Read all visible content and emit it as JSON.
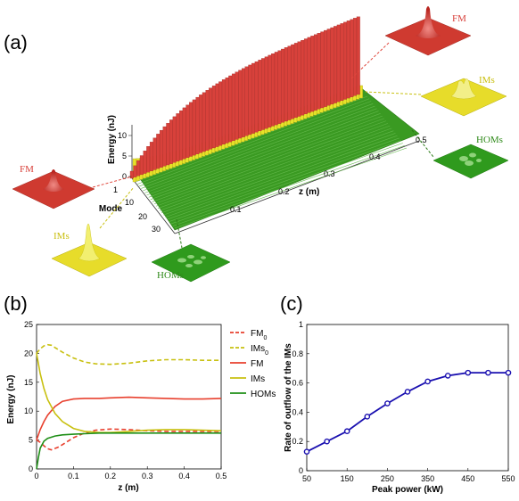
{
  "panels": {
    "a": "(a)",
    "b": "(b)",
    "c": "(c)"
  },
  "panel_a": {
    "energy_label": "Energy (nJ)",
    "mode_label": "Mode",
    "z_label": "z (m)",
    "energy_ticks": [
      "0",
      "5",
      "10"
    ],
    "mode_ticks": [
      "1",
      "10",
      "20",
      "30"
    ],
    "z_ticks": [
      "0.1",
      "0.2",
      "0.3",
      "0.4",
      "0.5"
    ],
    "callouts": {
      "fm_top": "FM",
      "ims_right": "IMs",
      "homs_right": "HOMs",
      "fm_left": "FM",
      "ims_left": "IMs",
      "homs_bottom": "HOMs"
    },
    "colors": {
      "fm": "#d8413b",
      "ims": "#e7e22a",
      "homs": "#2f9a1d"
    }
  },
  "chart_data": [
    {
      "type": "line",
      "panel": "b",
      "xlabel": "z (m)",
      "ylabel": "Energy (nJ)",
      "xlim": [
        0,
        0.5
      ],
      "ylim": [
        0,
        25
      ],
      "xticks": [
        "0",
        "0.1",
        "0.2",
        "0.3",
        "0.4",
        "0.5"
      ],
      "yticks": [
        "0",
        "5",
        "10",
        "15",
        "20",
        "25"
      ],
      "legend_position": "right",
      "series": [
        {
          "name": "FM",
          "sub": "0",
          "color": "#e8402e",
          "dashed": true,
          "x": [
            0,
            0.01,
            0.02,
            0.03,
            0.04,
            0.06,
            0.08,
            0.1,
            0.13,
            0.16,
            0.2,
            0.25,
            0.3,
            0.35,
            0.4,
            0.45,
            0.5
          ],
          "y": [
            5,
            4.6,
            4.0,
            3.5,
            3.3,
            3.8,
            4.6,
            5.4,
            6.2,
            6.7,
            6.9,
            6.8,
            6.6,
            6.5,
            6.5,
            6.5,
            6.5
          ]
        },
        {
          "name": "IMs",
          "sub": "0",
          "color": "#c8c010",
          "dashed": true,
          "x": [
            0,
            0.01,
            0.02,
            0.03,
            0.04,
            0.05,
            0.07,
            0.1,
            0.13,
            0.16,
            0.2,
            0.25,
            0.3,
            0.35,
            0.4,
            0.45,
            0.5
          ],
          "y": [
            20,
            20.8,
            21.3,
            21.5,
            21.4,
            21.0,
            20.2,
            19.2,
            18.5,
            18.2,
            18.1,
            18.3,
            18.7,
            18.9,
            18.9,
            18.8,
            18.8
          ]
        },
        {
          "name": "FM",
          "color": "#e8402e",
          "dashed": false,
          "x": [
            0,
            0.01,
            0.02,
            0.03,
            0.05,
            0.07,
            0.1,
            0.13,
            0.17,
            0.2,
            0.25,
            0.3,
            0.35,
            0.4,
            0.45,
            0.5
          ],
          "y": [
            5,
            6.8,
            8.2,
            9.3,
            10.8,
            11.7,
            12.1,
            12.2,
            12.2,
            12.3,
            12.4,
            12.3,
            12.2,
            12.1,
            12.1,
            12.2
          ]
        },
        {
          "name": "IMs",
          "color": "#c8c010",
          "dashed": false,
          "x": [
            0,
            0.01,
            0.02,
            0.03,
            0.05,
            0.07,
            0.1,
            0.13,
            0.17,
            0.2,
            0.25,
            0.3,
            0.35,
            0.4,
            0.45,
            0.5
          ],
          "y": [
            20,
            16.5,
            13.9,
            12.0,
            9.6,
            8.2,
            7.0,
            6.5,
            6.3,
            6.3,
            6.5,
            6.7,
            6.8,
            6.8,
            6.7,
            6.6
          ]
        },
        {
          "name": "HOMs",
          "color": "#1f8f17",
          "dashed": false,
          "x": [
            0,
            0.005,
            0.01,
            0.02,
            0.03,
            0.05,
            0.07,
            0.1,
            0.13,
            0.17,
            0.2,
            0.25,
            0.3,
            0.35,
            0.4,
            0.45,
            0.5
          ],
          "y": [
            0,
            2.0,
            3.6,
            4.8,
            5.3,
            5.7,
            5.9,
            6.0,
            6.1,
            6.2,
            6.2,
            6.2,
            6.2,
            6.2,
            6.2,
            6.2,
            6.2
          ]
        }
      ]
    },
    {
      "type": "line",
      "panel": "c",
      "xlabel": "Peak power (kW)",
      "ylabel": "Rate of outflow of the IMs",
      "xlim": [
        50,
        550
      ],
      "ylim": [
        0,
        1
      ],
      "xticks": [
        "50",
        "150",
        "250",
        "350",
        "450",
        "550"
      ],
      "yticks": [
        "0",
        "0.2",
        "0.4",
        "0.6",
        "0.8",
        "1"
      ],
      "series": [
        {
          "color": "#1a10b0",
          "marker": "circle",
          "x": [
            50,
            100,
            150,
            200,
            250,
            300,
            350,
            400,
            450,
            500,
            550
          ],
          "y": [
            0.13,
            0.2,
            0.27,
            0.37,
            0.46,
            0.54,
            0.61,
            0.65,
            0.67,
            0.67,
            0.67
          ]
        }
      ]
    }
  ]
}
